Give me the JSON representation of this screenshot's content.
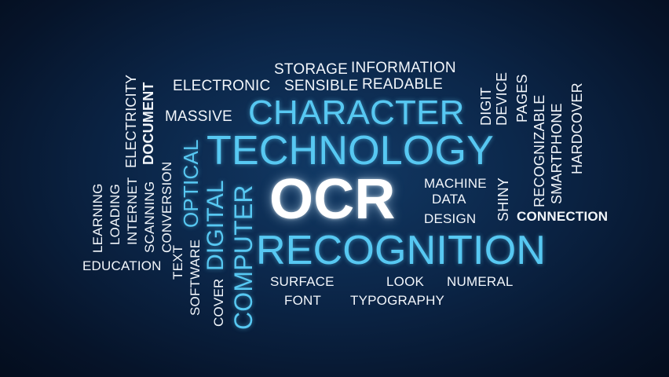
{
  "words": {
    "ocr": "OCR",
    "technology": "TECHNOLOGY",
    "character": "CHARACTER",
    "recognition": "RECOGNITION",
    "storage": "STORAGE",
    "information": "INFORMATION",
    "sensible": "SENSIBLE",
    "readable": "READABLE",
    "electronic": "ELECTRONIC",
    "massive": "MASSIVE",
    "electricity": "ELECTRICITY",
    "document": "DOCUMENT",
    "optical": "OPTICAL",
    "digital": "DIGITAL",
    "computer": "COMPUTER",
    "learning": "LEARNING",
    "loading": "LOADING",
    "internet": "INTERNET",
    "scanning": "SCANNING",
    "conversion": "CONVERSION",
    "text": "TEXT",
    "software": "SOFTWARE",
    "cover": "COVER",
    "education": "EDUCATION",
    "digit": "DIGIT",
    "device": "DEVICE",
    "pages": "PAGES",
    "recognizable": "RECOGNIZABLE",
    "smartphone": "SMARTPHONE",
    "hardcover": "HARDCOVER",
    "machine": "MACHINE",
    "data": "DATA",
    "shiny": "SHINY",
    "design": "DESIGN",
    "connection": "CONNECTION",
    "surface": "SURFACE",
    "look": "LOOK",
    "numeral": "NUMERAL",
    "font": "FONT",
    "typography": "TYPOGRAPHY"
  },
  "colors": {
    "primary_text": "#f2f6fb",
    "accent_cyan": "#57c8f2",
    "background": "#0b2547"
  }
}
